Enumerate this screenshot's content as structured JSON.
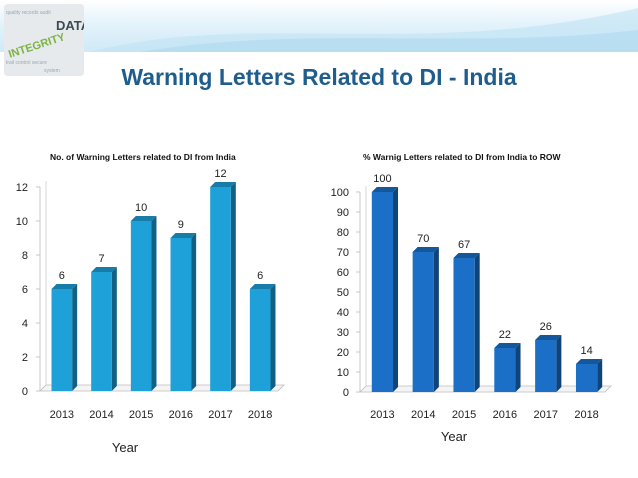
{
  "page": {
    "title": "Warning Letters Related to DI - India",
    "logo_text": [
      "DATA",
      "INTEGRITY"
    ]
  },
  "colors": {
    "title": "#1f5d8c",
    "left_bar": "#1ea0d8",
    "right_bar": "#1b6fc7"
  },
  "chart_data": [
    {
      "type": "bar",
      "title": "No. of Warning Letters related  to DI from India",
      "categories": [
        "2013",
        "2014",
        "2015",
        "2016",
        "2017",
        "2018"
      ],
      "values": [
        6,
        7,
        10,
        9,
        12,
        6
      ],
      "xlabel": "Year",
      "ylabel": "",
      "ylim": [
        0,
        12
      ],
      "yticks": [
        0,
        2,
        4,
        6,
        8,
        10,
        12
      ],
      "data_labels": true,
      "grid": false
    },
    {
      "type": "bar",
      "title": "% Warnig Letters related  to DI from India to ROW",
      "categories": [
        "2013",
        "2014",
        "2015",
        "2016",
        "2017",
        "2018"
      ],
      "values": [
        100,
        70,
        67,
        22,
        26,
        14
      ],
      "xlabel": "Year",
      "ylabel": "",
      "ylim": [
        0,
        100
      ],
      "yticks": [
        0,
        10,
        20,
        30,
        40,
        50,
        60,
        70,
        80,
        90,
        100
      ],
      "data_labels": true,
      "grid": false
    }
  ]
}
